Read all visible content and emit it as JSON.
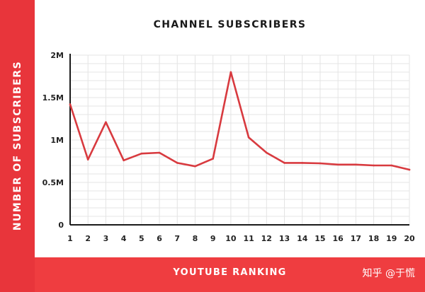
{
  "chart_data": {
    "type": "line",
    "title": "CHANNEL SUBSCRIBERS",
    "xlabel": "YOUTUBE RANKING",
    "ylabel": "NUMBER OF SUBSCRIBERS",
    "x": [
      1,
      2,
      3,
      4,
      5,
      6,
      7,
      8,
      9,
      10,
      11,
      12,
      13,
      14,
      15,
      16,
      17,
      18,
      19,
      20
    ],
    "x_ticks": [
      "1",
      "2",
      "3",
      "4",
      "5",
      "6",
      "7",
      "8",
      "9",
      "10",
      "11",
      "12",
      "13",
      "14",
      "15",
      "16",
      "17",
      "18",
      "19",
      "20"
    ],
    "y_ticks": [
      {
        "value": 0,
        "label": "0"
      },
      {
        "value": 500000,
        "label": "0.5M"
      },
      {
        "value": 1000000,
        "label": "1M"
      },
      {
        "value": 1500000,
        "label": "1.5M"
      },
      {
        "value": 2000000,
        "label": "2M"
      }
    ],
    "series": [
      {
        "values": [
          1420000,
          770000,
          1210000,
          760000,
          840000,
          850000,
          730000,
          690000,
          780000,
          1800000,
          1030000,
          850000,
          730000,
          730000,
          725000,
          710000,
          710000,
          700000,
          700000,
          650000
        ]
      }
    ],
    "xlim": [
      1,
      20
    ],
    "ylim": [
      0,
      2000000
    ],
    "grid": true,
    "line_color": "#d83a3f",
    "grid_color": "#e4e4e4",
    "accent_color": "#e8353b"
  },
  "watermark": "知乎 @于慌"
}
